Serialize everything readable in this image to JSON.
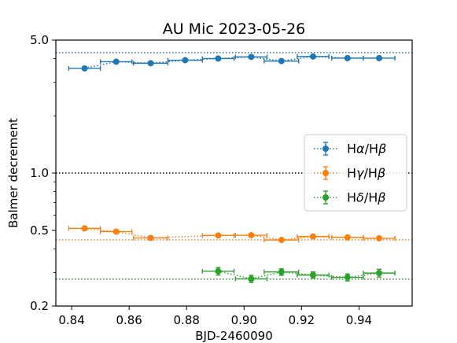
{
  "chart_data": {
    "type": "scatter",
    "title": "AU Mic 2023-05-26",
    "xlabel": "BJD-2460090",
    "ylabel": "Balmer decrement",
    "y_scale": "log",
    "xlim": [
      0.8345,
      0.9585
    ],
    "ylim": [
      0.2,
      5.0
    ],
    "x_ticks": [
      {
        "value": 0.84,
        "label": "0.84"
      },
      {
        "value": 0.86,
        "label": "0.86"
      },
      {
        "value": 0.88,
        "label": "0.88"
      },
      {
        "value": 0.9,
        "label": "0.90"
      },
      {
        "value": 0.92,
        "label": "0.92"
      },
      {
        "value": 0.94,
        "label": "0.94"
      }
    ],
    "y_ticks": [
      {
        "value": 0.2,
        "label": "0.2"
      },
      {
        "value": 0.5,
        "label": "0.5"
      },
      {
        "value": 1.0,
        "label": "1.0"
      },
      {
        "value": 5.0,
        "label": "5.0"
      }
    ],
    "y_minor_ticks": [
      0.3,
      0.4,
      0.6,
      0.7,
      0.8,
      0.9,
      2,
      3,
      4
    ],
    "grid": false,
    "legend_position": "center-right",
    "reference_lines": [
      {
        "y": 4.3,
        "color": "#1f77b4",
        "style": "dotted"
      },
      {
        "y": 1.0,
        "color": "#000000",
        "style": "dotted"
      },
      {
        "y": 0.445,
        "color": "#ff7f0e",
        "style": "dotted"
      },
      {
        "y": 0.277,
        "color": "#2ca02c",
        "style": "dotted"
      }
    ],
    "series": [
      {
        "name": "Hα/Hβ",
        "legend_base": "H",
        "legend_greek": "α",
        "legend_sep": "/H",
        "legend_greek2": "β",
        "color": "#1f77b4",
        "x": [
          0.8445,
          0.8555,
          0.8675,
          0.8795,
          0.891,
          0.9025,
          0.913,
          0.924,
          0.936,
          0.947
        ],
        "xerr": [
          0.0055,
          0.0055,
          0.006,
          0.006,
          0.0055,
          0.0055,
          0.006,
          0.0055,
          0.0055,
          0.0055
        ],
        "y": [
          3.55,
          3.85,
          3.78,
          3.92,
          4.0,
          4.08,
          3.88,
          4.1,
          4.02,
          4.02
        ],
        "yerr": [
          0.03,
          0.03,
          0.03,
          0.03,
          0.03,
          0.03,
          0.03,
          0.03,
          0.03,
          0.03
        ]
      },
      {
        "name": "Hγ/Hβ",
        "legend_base": "H",
        "legend_greek": "γ",
        "legend_sep": "/H",
        "legend_greek2": "β",
        "color": "#ff7f0e",
        "x": [
          0.8445,
          0.8555,
          0.8675,
          0.891,
          0.9025,
          0.913,
          0.924,
          0.936,
          0.947
        ],
        "xerr": [
          0.0055,
          0.0055,
          0.006,
          0.0055,
          0.0055,
          0.006,
          0.0055,
          0.0055,
          0.0055
        ],
        "y": [
          0.512,
          0.492,
          0.456,
          0.47,
          0.471,
          0.445,
          0.464,
          0.459,
          0.454
        ],
        "yerr": [
          0.006,
          0.006,
          0.006,
          0.006,
          0.006,
          0.006,
          0.006,
          0.006,
          0.006
        ]
      },
      {
        "name": "Hδ/Hβ",
        "legend_base": "H",
        "legend_greek": "δ",
        "legend_sep": "/H",
        "legend_greek2": "β",
        "color": "#2ca02c",
        "x": [
          0.891,
          0.9025,
          0.913,
          0.924,
          0.936,
          0.947
        ],
        "xerr": [
          0.0055,
          0.0055,
          0.006,
          0.0055,
          0.0055,
          0.0055
        ],
        "y": [
          0.305,
          0.278,
          0.302,
          0.291,
          0.283,
          0.298
        ],
        "yerr": [
          0.014,
          0.012,
          0.012,
          0.011,
          0.012,
          0.014
        ]
      }
    ]
  }
}
